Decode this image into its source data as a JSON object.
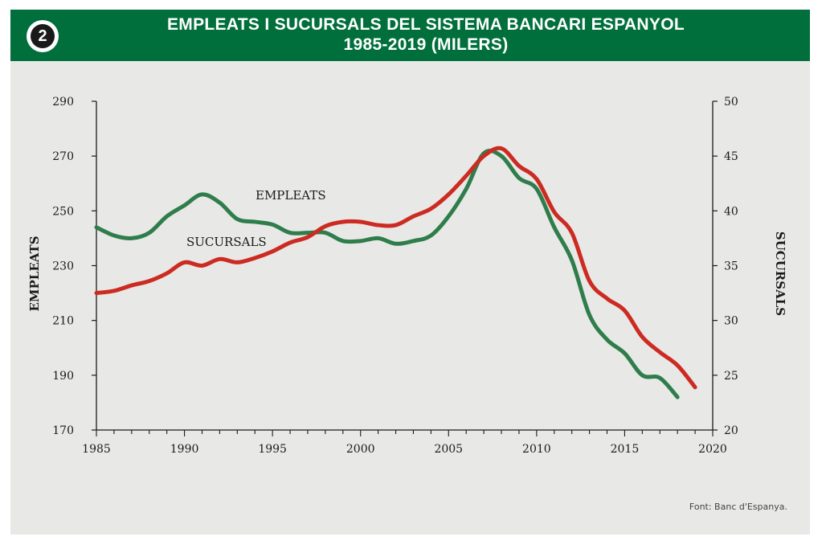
{
  "badge_number": "2",
  "colors": {
    "header_bg": "#006f3b",
    "empleats_line": "#2e7d4b",
    "sucursals_line": "#cc2b22",
    "background": "#e8e8e6"
  },
  "source": "Font: Banc d'Espanya.",
  "chart_data": {
    "type": "line",
    "title": "EMPLEATS I SUCURSALS DEL SISTEMA BANCARI ESPANYOL",
    "subtitle": "1985-2019 (MILERS)",
    "xlabel": "",
    "ylabel": "EMPLEATS",
    "ylabel_right": "SUCURSALS",
    "xlim": [
      1985,
      2020
    ],
    "ylim": [
      170,
      290
    ],
    "ylim_right": [
      20,
      50
    ],
    "x_ticks": [
      "1985",
      "1990",
      "1995",
      "2000",
      "2005",
      "2010",
      "2015",
      "2020"
    ],
    "y_ticks": [
      "290",
      "270",
      "250",
      "230",
      "210",
      "190",
      "170"
    ],
    "y_ticks_right": [
      "50",
      "45",
      "40",
      "35",
      "30",
      "25",
      "20"
    ],
    "grid": false,
    "series": [
      {
        "name": "EMPLEATS",
        "axis": "left",
        "x": [
          1985,
          1986,
          1987,
          1988,
          1989,
          1990,
          1991,
          1992,
          1993,
          1994,
          1995,
          1996,
          1997,
          1998,
          1999,
          2000,
          2001,
          2002,
          2003,
          2004,
          2005,
          2006,
          2007,
          2008,
          2009,
          2010,
          2011,
          2012,
          2013,
          2014,
          2015,
          2016,
          2017,
          2018
        ],
        "values": [
          244,
          241,
          240,
          242,
          248,
          252,
          256,
          253,
          247,
          246,
          245,
          242,
          242,
          242,
          239,
          239,
          240,
          238,
          239,
          241,
          248,
          258,
          271,
          270,
          262,
          258,
          244,
          232,
          212,
          203,
          198,
          190,
          189,
          182
        ]
      },
      {
        "name": "SUCURSALS",
        "axis": "right",
        "x": [
          1985,
          1986,
          1987,
          1988,
          1989,
          1990,
          1991,
          1992,
          1993,
          1994,
          1995,
          1996,
          1997,
          1998,
          1999,
          2000,
          2001,
          2002,
          2003,
          2004,
          2005,
          2006,
          2007,
          2008,
          2009,
          2010,
          2011,
          2012,
          2013,
          2014,
          2015,
          2016,
          2017,
          2018,
          2019
        ],
        "values": [
          32.5,
          32.7,
          33.2,
          33.6,
          34.3,
          35.3,
          35.0,
          35.6,
          35.3,
          35.7,
          36.3,
          37.1,
          37.6,
          38.6,
          39.0,
          39.0,
          38.7,
          38.7,
          39.5,
          40.2,
          41.5,
          43.2,
          45.0,
          45.7,
          44.1,
          42.9,
          39.9,
          38.0,
          33.6,
          32.0,
          30.9,
          28.5,
          27.1,
          25.9,
          23.9
        ]
      }
    ]
  }
}
